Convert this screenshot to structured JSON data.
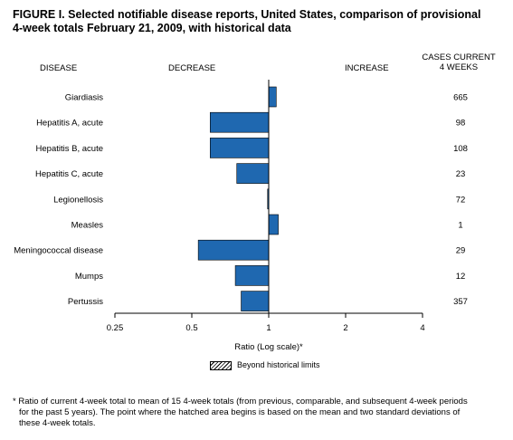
{
  "figure": {
    "title_line1": "FIGURE I. Selected notifiable disease reports, United States, comparison of provisional",
    "title_line2": "4-week totals February 21, 2009, with historical data"
  },
  "headers": {
    "disease": "DISEASE",
    "decrease": "DECREASE",
    "increase": "INCREASE",
    "cases_line1": "CASES CURRENT",
    "cases_line2": "4 WEEKS"
  },
  "legend": {
    "label": "Beyond historical limits"
  },
  "footnote": {
    "line1": "* Ratio of current 4-week total to mean of 15 4-week totals (from previous, comparable, and subsequent 4-week periods",
    "line2": "for the past 5 years). The point where the hatched area begins is based on the mean and two standard deviations of",
    "line3": "these 4-week totals."
  },
  "chart_data": {
    "type": "bar",
    "orientation": "horizontal",
    "xscale": "log2",
    "xlabel": "Ratio (Log scale)*",
    "xlim": [
      0.25,
      4
    ],
    "xticks": [
      "0.25",
      "0.5",
      "1",
      "2",
      "4"
    ],
    "reference_line": 1,
    "bar_color": "#1f68b0",
    "categories": [
      "Giardiasis",
      "Hepatitis A, acute",
      "Hepatitis B, acute",
      "Hepatitis C, acute",
      "Legionellosis",
      "Measles",
      "Meningococcal disease",
      "Mumps",
      "Pertussis"
    ],
    "values": [
      1.07,
      0.59,
      0.59,
      0.75,
      0.99,
      1.09,
      0.53,
      0.74,
      0.78
    ],
    "cases_current_4_weeks": [
      "665",
      "98",
      "108",
      "23",
      "72",
      "1",
      "29",
      "12",
      "357"
    ]
  }
}
